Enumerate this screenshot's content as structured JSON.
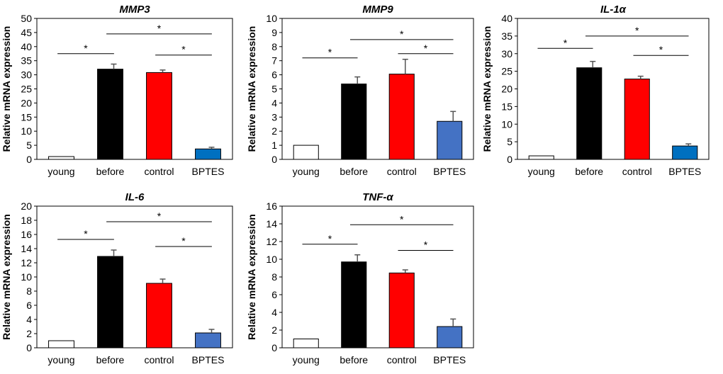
{
  "figure": {
    "chart_data": [
      {
        "type": "bar",
        "title": "MMP3",
        "ylabel": "Relative mRNA expression",
        "categories": [
          "young",
          "before",
          "control",
          "BPTES"
        ],
        "values": [
          1.0,
          32.0,
          30.8,
          3.7
        ],
        "errors": [
          0.0,
          1.8,
          0.9,
          0.6
        ],
        "colors": [
          "#ffffff",
          "#000000",
          "#ff0000",
          "#0070c0"
        ],
        "ylim": [
          0,
          50
        ],
        "yticks": [
          0,
          5,
          10,
          15,
          20,
          25,
          30,
          35,
          40,
          45,
          50
        ],
        "yticks_text": [
          "0",
          "5",
          "10",
          "15",
          "20",
          "25",
          "30",
          "35",
          "40",
          "45",
          "50"
        ],
        "significance": [
          {
            "from": 0,
            "to": 1,
            "y": 37.5,
            "label": "*"
          },
          {
            "from": 1,
            "to": 3,
            "y": 44.5,
            "label": "*"
          },
          {
            "from": 2,
            "to": 3,
            "y": 37.0,
            "label": "*"
          }
        ]
      },
      {
        "type": "bar",
        "title": "MMP9",
        "ylabel": "Relative mRNA expression",
        "categories": [
          "young",
          "before",
          "control",
          "BPTES"
        ],
        "values": [
          1.0,
          5.35,
          6.05,
          2.7
        ],
        "errors": [
          0.0,
          0.5,
          1.05,
          0.7
        ],
        "colors": [
          "#ffffff",
          "#000000",
          "#ff0000",
          "#4472c4"
        ],
        "ylim": [
          0,
          10
        ],
        "yticks": [
          0,
          1,
          2,
          3,
          4,
          5,
          6,
          7,
          8,
          9,
          10
        ],
        "yticks_text": [
          "0",
          "1",
          "2",
          "3",
          "4",
          "5",
          "6",
          "7",
          "8",
          "9",
          "10"
        ],
        "significance": [
          {
            "from": 0,
            "to": 1,
            "y": 7.2,
            "label": "*"
          },
          {
            "from": 1,
            "to": 3,
            "y": 8.5,
            "label": "*"
          },
          {
            "from": 2,
            "to": 3,
            "y": 7.5,
            "label": "*"
          }
        ]
      },
      {
        "type": "bar",
        "title": "IL-1α",
        "ylabel": "Relative mRNA expression",
        "categories": [
          "young",
          "before",
          "control",
          "BPTES"
        ],
        "values": [
          1.0,
          26.0,
          22.8,
          3.8
        ],
        "errors": [
          0.0,
          1.8,
          0.8,
          0.6
        ],
        "colors": [
          "#ffffff",
          "#000000",
          "#ff0000",
          "#0070c0"
        ],
        "ylim": [
          0,
          40
        ],
        "yticks": [
          0,
          5,
          10,
          15,
          20,
          25,
          30,
          35,
          40
        ],
        "yticks_text": [
          "0",
          "5",
          "10",
          "15",
          "20",
          "25",
          "30",
          "35",
          "40"
        ],
        "significance": [
          {
            "from": 0,
            "to": 1,
            "y": 31.5,
            "label": "*"
          },
          {
            "from": 1,
            "to": 3,
            "y": 35.0,
            "label": "*"
          },
          {
            "from": 2,
            "to": 3,
            "y": 29.5,
            "label": "*"
          }
        ]
      },
      {
        "type": "bar",
        "title": "IL-6",
        "ylabel": "Relative mRNA expression",
        "categories": [
          "young",
          "before",
          "control",
          "BPTES"
        ],
        "values": [
          1.0,
          12.9,
          9.1,
          2.1
        ],
        "errors": [
          0.0,
          0.9,
          0.6,
          0.5
        ],
        "colors": [
          "#ffffff",
          "#000000",
          "#ff0000",
          "#4472c4"
        ],
        "ylim": [
          0,
          20
        ],
        "yticks": [
          0,
          2,
          4,
          6,
          8,
          10,
          12,
          14,
          16,
          18,
          20
        ],
        "yticks_text": [
          "0",
          "2",
          "4",
          "6",
          "8",
          "10",
          "12",
          "14",
          "16",
          "18",
          "20"
        ],
        "significance": [
          {
            "from": 0,
            "to": 1,
            "y": 15.3,
            "label": "*"
          },
          {
            "from": 1,
            "to": 3,
            "y": 17.8,
            "label": "*"
          },
          {
            "from": 2,
            "to": 3,
            "y": 14.3,
            "label": "*"
          }
        ]
      },
      {
        "type": "bar",
        "title": "TNF-α",
        "ylabel": "Relative mRNA expression",
        "categories": [
          "young",
          "before",
          "control",
          "BPTES"
        ],
        "values": [
          1.0,
          9.7,
          8.45,
          2.4
        ],
        "errors": [
          0.0,
          0.8,
          0.35,
          0.85
        ],
        "colors": [
          "#ffffff",
          "#000000",
          "#ff0000",
          "#4472c4"
        ],
        "ylim": [
          0,
          16
        ],
        "yticks": [
          0,
          2,
          4,
          6,
          8,
          10,
          12,
          14,
          16
        ],
        "yticks_text": [
          "0",
          "2",
          "4",
          "6",
          "8",
          "10",
          "12",
          "14",
          "16"
        ],
        "significance": [
          {
            "from": 0,
            "to": 1,
            "y": 11.7,
            "label": "*"
          },
          {
            "from": 1,
            "to": 3,
            "y": 13.9,
            "label": "*"
          },
          {
            "from": 2,
            "to": 3,
            "y": 11.0,
            "label": "*"
          }
        ]
      }
    ]
  }
}
